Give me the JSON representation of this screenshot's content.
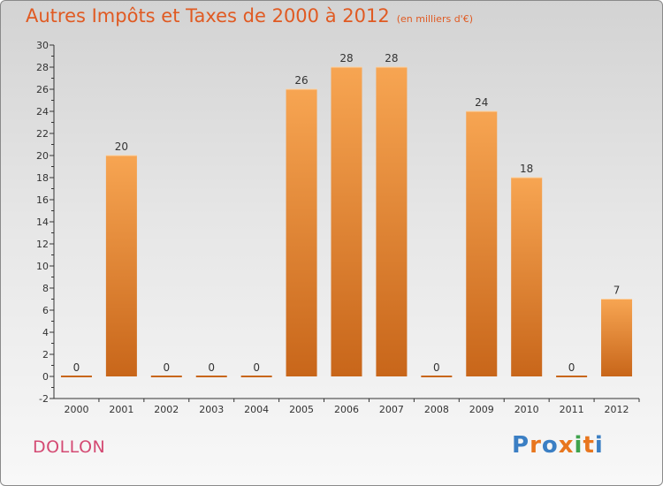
{
  "header": {
    "title": "Autres Impôts et Taxes de 2000 à 2012",
    "subtitle": "(en milliers d'€)"
  },
  "footer": {
    "commune": "DOLLON",
    "logo": "Proxiti"
  },
  "colors": {
    "bar_light": "#f7a552",
    "bar_dark": "#c8661a",
    "title": "#e05a22",
    "commune": "#d44a73",
    "logo_letters": [
      "#3b7fc4",
      "#e8761e",
      "#3b7fc4",
      "#e8761e",
      "#3fa34d",
      "#e8761e",
      "#3b7fc4"
    ]
  },
  "chart_data": {
    "type": "bar",
    "title": "Autres Impôts et Taxes de 2000 à 2012",
    "subtitle": "(en milliers d'€)",
    "categories": [
      "2000",
      "2001",
      "2002",
      "2003",
      "2004",
      "2005",
      "2006",
      "2007",
      "2008",
      "2009",
      "2010",
      "2011",
      "2012"
    ],
    "values": [
      0,
      20,
      0,
      0,
      0,
      26,
      28,
      28,
      0,
      24,
      18,
      0,
      7
    ],
    "data_labels": [
      "0",
      "20",
      "0",
      "0",
      "0",
      "26",
      "28",
      "28",
      "0",
      "24",
      "18",
      "0",
      "7"
    ],
    "xlabel": "",
    "ylabel": "",
    "ylim": [
      -2,
      30
    ],
    "yticks": [
      "-2",
      "0",
      "2",
      "4",
      "6",
      "8",
      "10",
      "12",
      "14",
      "16",
      "18",
      "20",
      "22",
      "24",
      "26",
      "28",
      "30"
    ],
    "grid": false,
    "legend": "none"
  }
}
